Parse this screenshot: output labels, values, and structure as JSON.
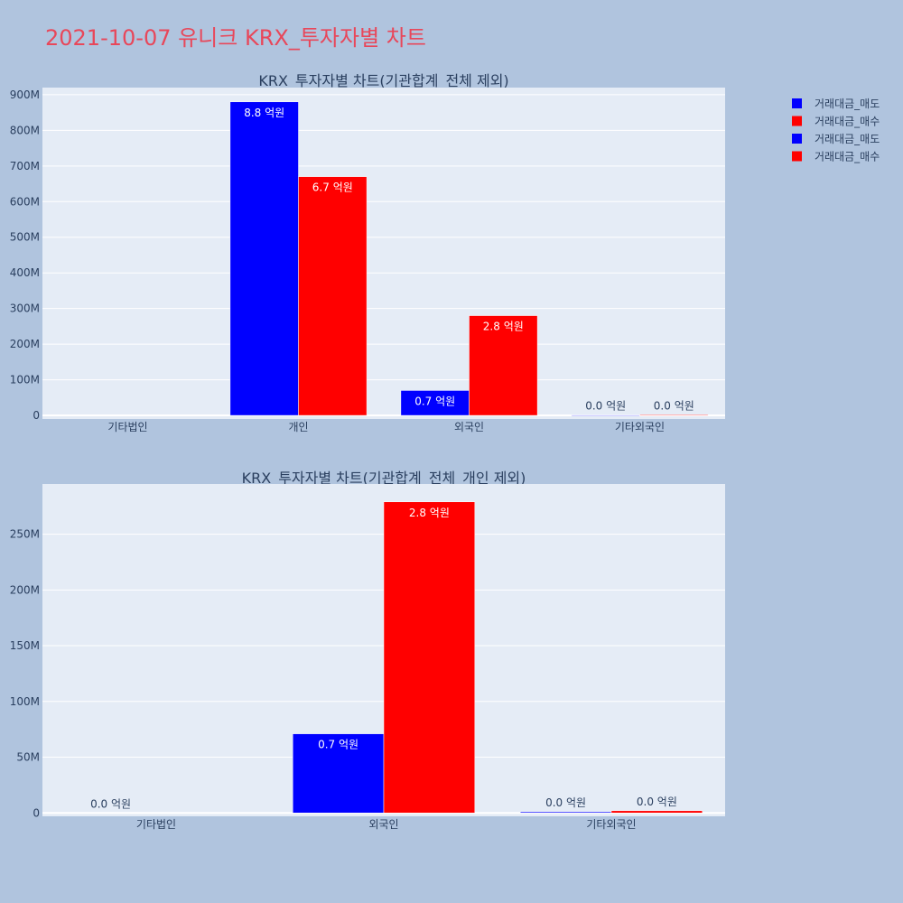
{
  "title": "2021-10-07 유니크 KRX_투자자별 차트",
  "legend": [
    {
      "label": "거래대금_매도",
      "color": "#0000ff"
    },
    {
      "label": "거래대금_매수",
      "color": "#ff0000"
    },
    {
      "label": "거래대금_매도",
      "color": "#0000ff"
    },
    {
      "label": "거래대금_매수",
      "color": "#ff0000"
    }
  ],
  "chart_data": [
    {
      "type": "bar",
      "title": "KRX_투자자별 차트(기관합계_전체 제외)",
      "categories": [
        "기타법인",
        "개인",
        "외국인",
        "기타외국인"
      ],
      "series": [
        {
          "name": "거래대금_매도",
          "color": "#0000ff",
          "values": [
            0,
            880000000,
            70000000,
            1000000
          ],
          "labels": [
            "",
            "8.8 억원",
            "0.7 억원",
            "0.0 억원"
          ]
        },
        {
          "name": "거래대금_매수",
          "color": "#ff0000",
          "values": [
            0,
            670000000,
            280000000,
            2000000
          ],
          "labels": [
            "",
            "6.7 억원",
            "2.8 억원",
            "0.0 억원"
          ]
        }
      ],
      "ylim": [
        -10000000,
        920000000
      ],
      "yticks": [
        0,
        100000000,
        200000000,
        300000000,
        400000000,
        500000000,
        600000000,
        700000000,
        800000000,
        900000000
      ],
      "ytick_labels": [
        "0",
        "100M",
        "200M",
        "300M",
        "400M",
        "500M",
        "600M",
        "700M",
        "800M",
        "900M"
      ],
      "grid": true
    },
    {
      "type": "bar",
      "title": "KRX_투자자별 차트(기관합계_전체_개인 제외)",
      "categories": [
        "기타법인",
        "외국인",
        "기타외국인"
      ],
      "series": [
        {
          "name": "거래대금_매도",
          "color": "#0000ff",
          "values": [
            0,
            71000000,
            1000000
          ],
          "labels": [
            "0.0 억원",
            "0.7 억원",
            "0.0 억원"
          ]
        },
        {
          "name": "거래대금_매수",
          "color": "#ff0000",
          "values": [
            0,
            279000000,
            2000000
          ],
          "labels": [
            "",
            "2.8 억원",
            "0.0 억원"
          ]
        }
      ],
      "ylim": [
        -3000000,
        295000000
      ],
      "yticks": [
        0,
        50000000,
        100000000,
        150000000,
        200000000,
        250000000
      ],
      "ytick_labels": [
        "0",
        "50M",
        "100M",
        "150M",
        "200M",
        "250M"
      ],
      "grid": true
    }
  ]
}
